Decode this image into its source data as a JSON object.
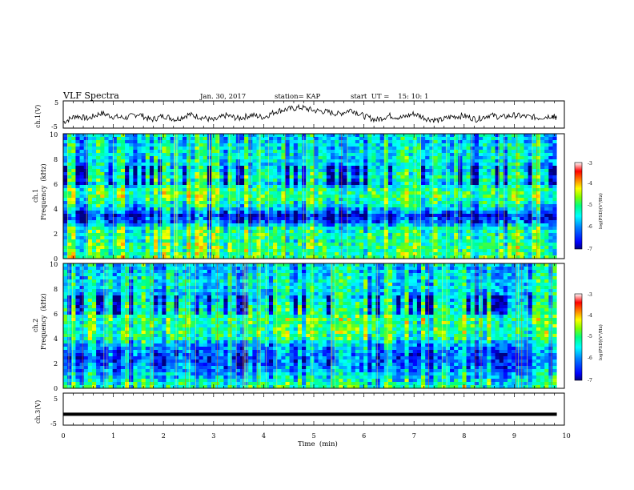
{
  "header": {
    "title": "VLF Spectra",
    "date": "Jan. 30, 2017",
    "station": "station= KAP",
    "start": "start  UT =    15: 10: 1"
  },
  "chart_data": [
    {
      "type": "line",
      "panel": "ch1-waveform",
      "ylabel": "ch.1(V)",
      "ylim": [
        -5,
        5
      ],
      "yticks": [
        "5",
        "-5"
      ],
      "xlim": [
        0,
        10
      ],
      "description_values_note": "",
      "x": [
        0,
        0.25,
        0.5,
        0.75,
        1,
        1.25,
        1.5,
        1.75,
        2,
        2.25,
        2.5,
        2.75,
        3,
        3.25,
        3.5,
        3.75,
        4,
        4.25,
        4.5,
        4.75,
        5,
        5.25,
        5.5,
        5.75,
        6,
        6.25,
        6.5,
        6.75,
        7,
        7.25,
        7.5,
        7.75,
        8,
        8.25,
        8.5,
        8.75,
        9,
        9.25,
        9.5,
        9.75,
        9.85
      ],
      "y": [
        -2.8,
        -0.5,
        -1.5,
        0.5,
        -0.8,
        -1.2,
        0.2,
        -2.0,
        -0.5,
        -1.8,
        0.0,
        -1.0,
        -2.2,
        -0.3,
        -1.5,
        -0.2,
        -1.0,
        1.2,
        2.0,
        2.6,
        1.5,
        1.0,
        0.2,
        1.8,
        -0.6,
        -2.0,
        -0.4,
        -1.2,
        0.3,
        -1.5,
        -2.2,
        -0.8,
        -0.5,
        -1.8,
        -0.2,
        -1.0,
        -0.3,
        -0.8,
        -1.2,
        -0.4,
        -1.5
      ]
    },
    {
      "type": "heatmap",
      "panel": "ch1-spectrogram",
      "ylabel": "ch.1",
      "ylabel2": "Frequency  (kHz)",
      "ylim": [
        0,
        10
      ],
      "yticks": [
        "0",
        "2",
        "4",
        "6",
        "8",
        "10"
      ],
      "xlim": [
        0,
        10
      ],
      "colorbar": {
        "ticks": [
          "-3",
          "-4",
          "-5",
          "-6",
          "-7"
        ],
        "range": [
          -7,
          -3
        ],
        "label": "log(PSD)(V²/Hz)"
      },
      "band_profile_kHz": [
        0,
        0.5,
        1,
        1.5,
        2,
        2.5,
        3,
        3.5,
        4,
        4.5,
        5,
        5.5,
        6,
        6.5,
        7,
        7.5,
        8,
        8.5,
        9,
        9.5,
        10
      ],
      "band_profile_logpsd": [
        -4.8,
        -5.0,
        -4.9,
        -5.1,
        -5.0,
        -5.3,
        -6.3,
        -6.6,
        -5.6,
        -5.2,
        -4.9,
        -5.0,
        -5.6,
        -5.2,
        -5.5,
        -5.6,
        -5.5,
        -5.4,
        -5.5,
        -5.6,
        -5.5
      ]
    },
    {
      "type": "heatmap",
      "panel": "ch2-spectrogram",
      "ylabel": "ch.2",
      "ylabel2": "Frequency  (kHz)",
      "ylim": [
        0,
        10
      ],
      "yticks": [
        "0",
        "2",
        "4",
        "6",
        "8",
        "10"
      ],
      "xlim": [
        0,
        10
      ],
      "colorbar": {
        "ticks": [
          "-3",
          "-4",
          "-5",
          "-6",
          "-7"
        ],
        "range": [
          -7,
          -3
        ],
        "label": "log(PSD)(V²/Hz)"
      },
      "band_profile_kHz": [
        0,
        0.5,
        1,
        1.5,
        2,
        2.5,
        3,
        3.5,
        4,
        4.5,
        5,
        5.5,
        6,
        6.5,
        7,
        7.5,
        8,
        8.5,
        9,
        9.5,
        10
      ],
      "band_profile_logpsd": [
        -5.0,
        -5.3,
        -5.6,
        -5.9,
        -6.1,
        -6.2,
        -6.0,
        -5.8,
        -5.1,
        -5.0,
        -5.0,
        -4.9,
        -5.2,
        -5.3,
        -5.5,
        -5.6,
        -5.5,
        -5.4,
        -5.5,
        -5.6,
        -5.5
      ]
    },
    {
      "type": "line",
      "panel": "ch3-waveform",
      "ylabel": "ch.3(V)",
      "ylim": [
        -5,
        5
      ],
      "yticks": [
        "5",
        "-5"
      ],
      "xlabel": "Time  (min)",
      "xlim": [
        0,
        10
      ],
      "xticks": [
        "0",
        "1",
        "2",
        "3",
        "4",
        "5",
        "6",
        "7",
        "8",
        "9",
        "10"
      ],
      "x": [
        0,
        9.85
      ],
      "y": [
        -1.6,
        -1.6
      ]
    }
  ],
  "colormap": [
    "#000080",
    "#0000ff",
    "#0080ff",
    "#00ffff",
    "#00ff80",
    "#80ff00",
    "#ffff00",
    "#ff8000",
    "#ff0000",
    "#ffffff"
  ]
}
